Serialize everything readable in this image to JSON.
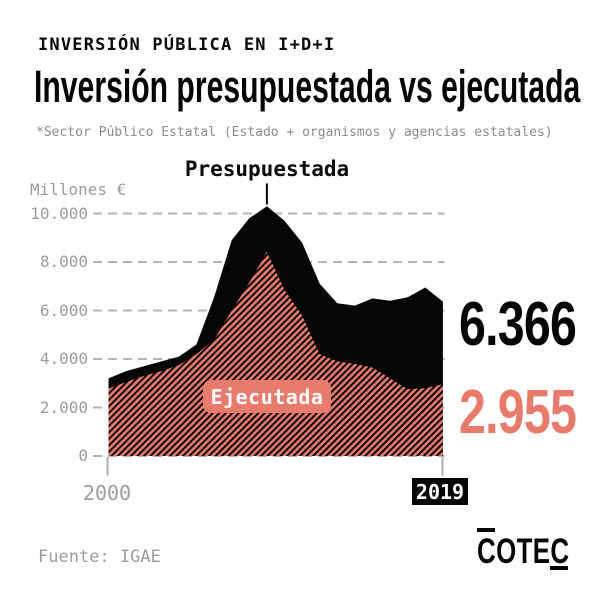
{
  "header": {
    "kicker": "INVERSIÓN PÚBLICA EN I+D+I",
    "title": "Inversión presupuestada vs ejecutada",
    "subtitle": "*Sector Público Estatal (Estado + organismos y agencias estatales)"
  },
  "chart": {
    "unit_label": "Millones €",
    "y_ticks": [
      "10.000",
      "8.000",
      "6.000",
      "4.000",
      "2.000",
      "0"
    ],
    "series_label_budgeted": "Presupuestada",
    "series_label_executed": "Ejecutada",
    "end_value_budgeted": "6.366",
    "end_value_executed": "2.955",
    "x_start_label": "2000",
    "x_end_label": "2019"
  },
  "footer": {
    "source": "Fuente: IGAE",
    "logo": "COTEC"
  },
  "colors": {
    "accent_salmon": "#E87B6B",
    "black": "#050505",
    "gridline_gray": "#b3b3b3",
    "label_gray": "#9c9c9c",
    "hatch_stripe": "#0d0705"
  },
  "chart_data": {
    "type": "area",
    "title": "Inversión presupuestada vs ejecutada",
    "unit": "Millones €",
    "xlabel": "",
    "ylabel": "Millones €",
    "ylim": [
      0,
      10000
    ],
    "y_tick_values": [
      10000,
      8000,
      6000,
      4000,
      2000,
      0
    ],
    "grid": "dashed-horizontal",
    "x": [
      2000,
      2001,
      2002,
      2003,
      2004,
      2005,
      2006,
      2007,
      2008,
      2009,
      2010,
      2011,
      2012,
      2013,
      2014,
      2015,
      2016,
      2017,
      2018,
      2019
    ],
    "series": [
      {
        "name": "Presupuestada",
        "style": "solid-black",
        "values": [
          3200,
          3500,
          3700,
          3900,
          4100,
          4600,
          6550,
          8900,
          9800,
          10300,
          9700,
          8800,
          7100,
          6300,
          6200,
          6500,
          6400,
          6550,
          6950,
          6366
        ]
      },
      {
        "name": "Ejecutada",
        "style": "diagonal-hatch-salmon",
        "values": [
          2780,
          3050,
          3300,
          3500,
          3750,
          4200,
          4800,
          6000,
          7150,
          8425,
          6850,
          5800,
          4200,
          3900,
          3800,
          3650,
          3200,
          2750,
          2800,
          2955
        ]
      }
    ],
    "annotations": {
      "peak_pointer_year": 2009,
      "end_value_budgeted": "6.366",
      "end_value_executed": "2.955"
    },
    "source": "Fuente: IGAE"
  }
}
